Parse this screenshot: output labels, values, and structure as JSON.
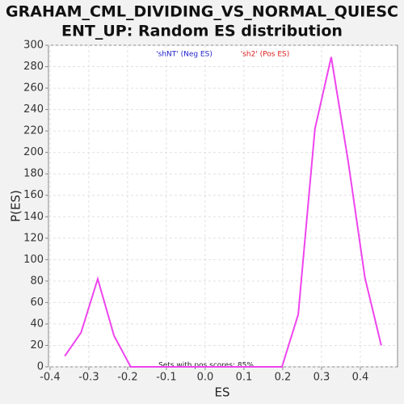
{
  "chart_data": {
    "type": "line",
    "title": [
      "GRAHAM_CML_DIVIDING_VS_NORMAL_QUIESC",
      "ENT_UP: Random ES distribution"
    ],
    "x_label": "ES",
    "y_label": "P(ES)",
    "legend": [
      {
        "label": "'shNT' (Neg ES)",
        "color": "#2222cc"
      },
      {
        "label": "'sh2' (Pos ES)",
        "color": "#dd2222"
      }
    ],
    "annotation": "Sets with pos scores: 85%",
    "series": [
      {
        "color": "#ee44ee",
        "x": [
          -0.362,
          -0.32,
          -0.277,
          -0.235,
          -0.192,
          0.198,
          0.24,
          0.283,
          0.325,
          0.369,
          0.412,
          0.454
        ],
        "values": [
          10,
          32,
          82,
          29,
          0,
          0,
          49,
          222,
          289,
          191,
          83,
          20
        ]
      }
    ],
    "xlim": [
      -0.404,
      0.496
    ],
    "ylim": [
      0,
      300
    ],
    "xticks": [
      -0.4,
      -0.3,
      -0.2,
      -0.1,
      {
        "value": 0,
        "label": "0.0"
      },
      0.1,
      0.2,
      0.3,
      0.4
    ],
    "yticks": [
      0,
      20,
      40,
      60,
      80,
      100,
      120,
      140,
      160,
      180,
      200,
      220,
      240,
      260,
      280,
      300
    ],
    "grid": true
  }
}
